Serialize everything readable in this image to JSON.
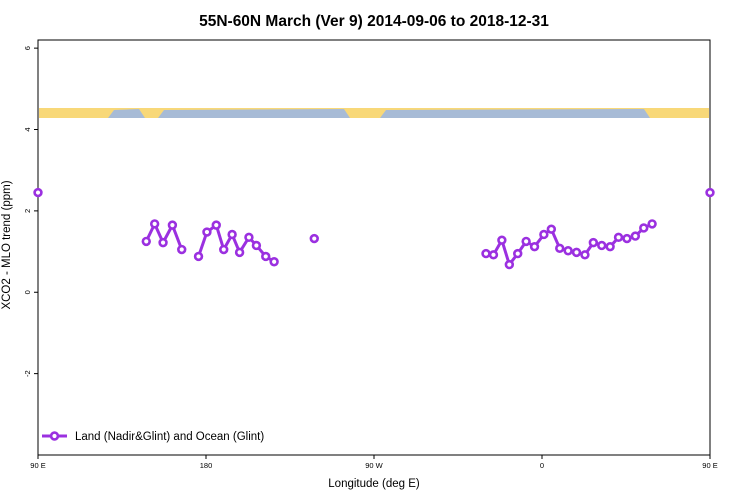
{
  "chart_data": {
    "type": "line",
    "title": "55N-60N March (Ver 9)   2014-09-06 to 2018-12-31",
    "xlabel": "Longitude (deg E)",
    "ylabel": "XCO2 - MLO trend (ppm)",
    "xlim": [
      90,
      450
    ],
    "ylim": [
      -4.0,
      6.2
    ],
    "x_ticks": [
      {
        "value": 90,
        "label": "90 E"
      },
      {
        "value": 180,
        "label": "180"
      },
      {
        "value": 270,
        "label": "90 W"
      },
      {
        "value": 360,
        "label": "0"
      },
      {
        "value": 450,
        "label": "90 E"
      },
      {
        "value": 540,
        "label": "180"
      }
    ],
    "y_ticks": [
      {
        "value": -2,
        "label": "-2"
      },
      {
        "value": 0,
        "label": "0"
      },
      {
        "value": 2,
        "label": "2"
      },
      {
        "value": 4,
        "label": "4"
      },
      {
        "value": 6,
        "label": "6"
      }
    ],
    "legend": {
      "position": "bottom-left",
      "label": "Land (Nadir&Glint) and Ocean (Glint)"
    },
    "colors": {
      "series": "#9b30e0",
      "map_land": "#f8d878",
      "map_ocean": "#a7bbd6"
    },
    "series": [
      {
        "name": "Land (Nadir&Glint) and Ocean (Glint)",
        "segments": [
          [
            [
              90,
              2.45
            ]
          ],
          [
            [
              148,
              1.25
            ],
            [
              152.5,
              1.68
            ],
            [
              157,
              1.22
            ],
            [
              162,
              1.65
            ],
            [
              167,
              1.05
            ]
          ],
          [
            [
              176,
              0.88
            ],
            [
              180.5,
              1.48
            ],
            [
              185.5,
              1.65
            ],
            [
              189.5,
              1.05
            ],
            [
              194,
              1.42
            ],
            [
              198,
              0.98
            ],
            [
              203,
              1.35
            ],
            [
              207,
              1.15
            ],
            [
              212,
              0.88
            ],
            [
              216.5,
              0.75
            ]
          ],
          [
            [
              238,
              1.32
            ]
          ],
          [
            [
              330,
              0.95
            ],
            [
              334,
              0.92
            ],
            [
              338.5,
              1.28
            ],
            [
              342.5,
              0.68
            ],
            [
              347,
              0.95
            ],
            [
              351.5,
              1.25
            ],
            [
              356,
              1.12
            ],
            [
              361,
              1.42
            ],
            [
              365,
              1.55
            ],
            [
              369.5,
              1.08
            ],
            [
              374,
              1.02
            ],
            [
              378.5,
              0.98
            ],
            [
              383,
              0.92
            ],
            [
              387.5,
              1.22
            ],
            [
              392,
              1.15
            ],
            [
              396.5,
              1.12
            ],
            [
              401,
              1.35
            ],
            [
              405.5,
              1.32
            ],
            [
              410,
              1.38
            ],
            [
              414.5,
              1.58
            ],
            [
              419,
              1.68
            ]
          ],
          [
            [
              450,
              2.45
            ]
          ]
        ]
      }
    ]
  }
}
